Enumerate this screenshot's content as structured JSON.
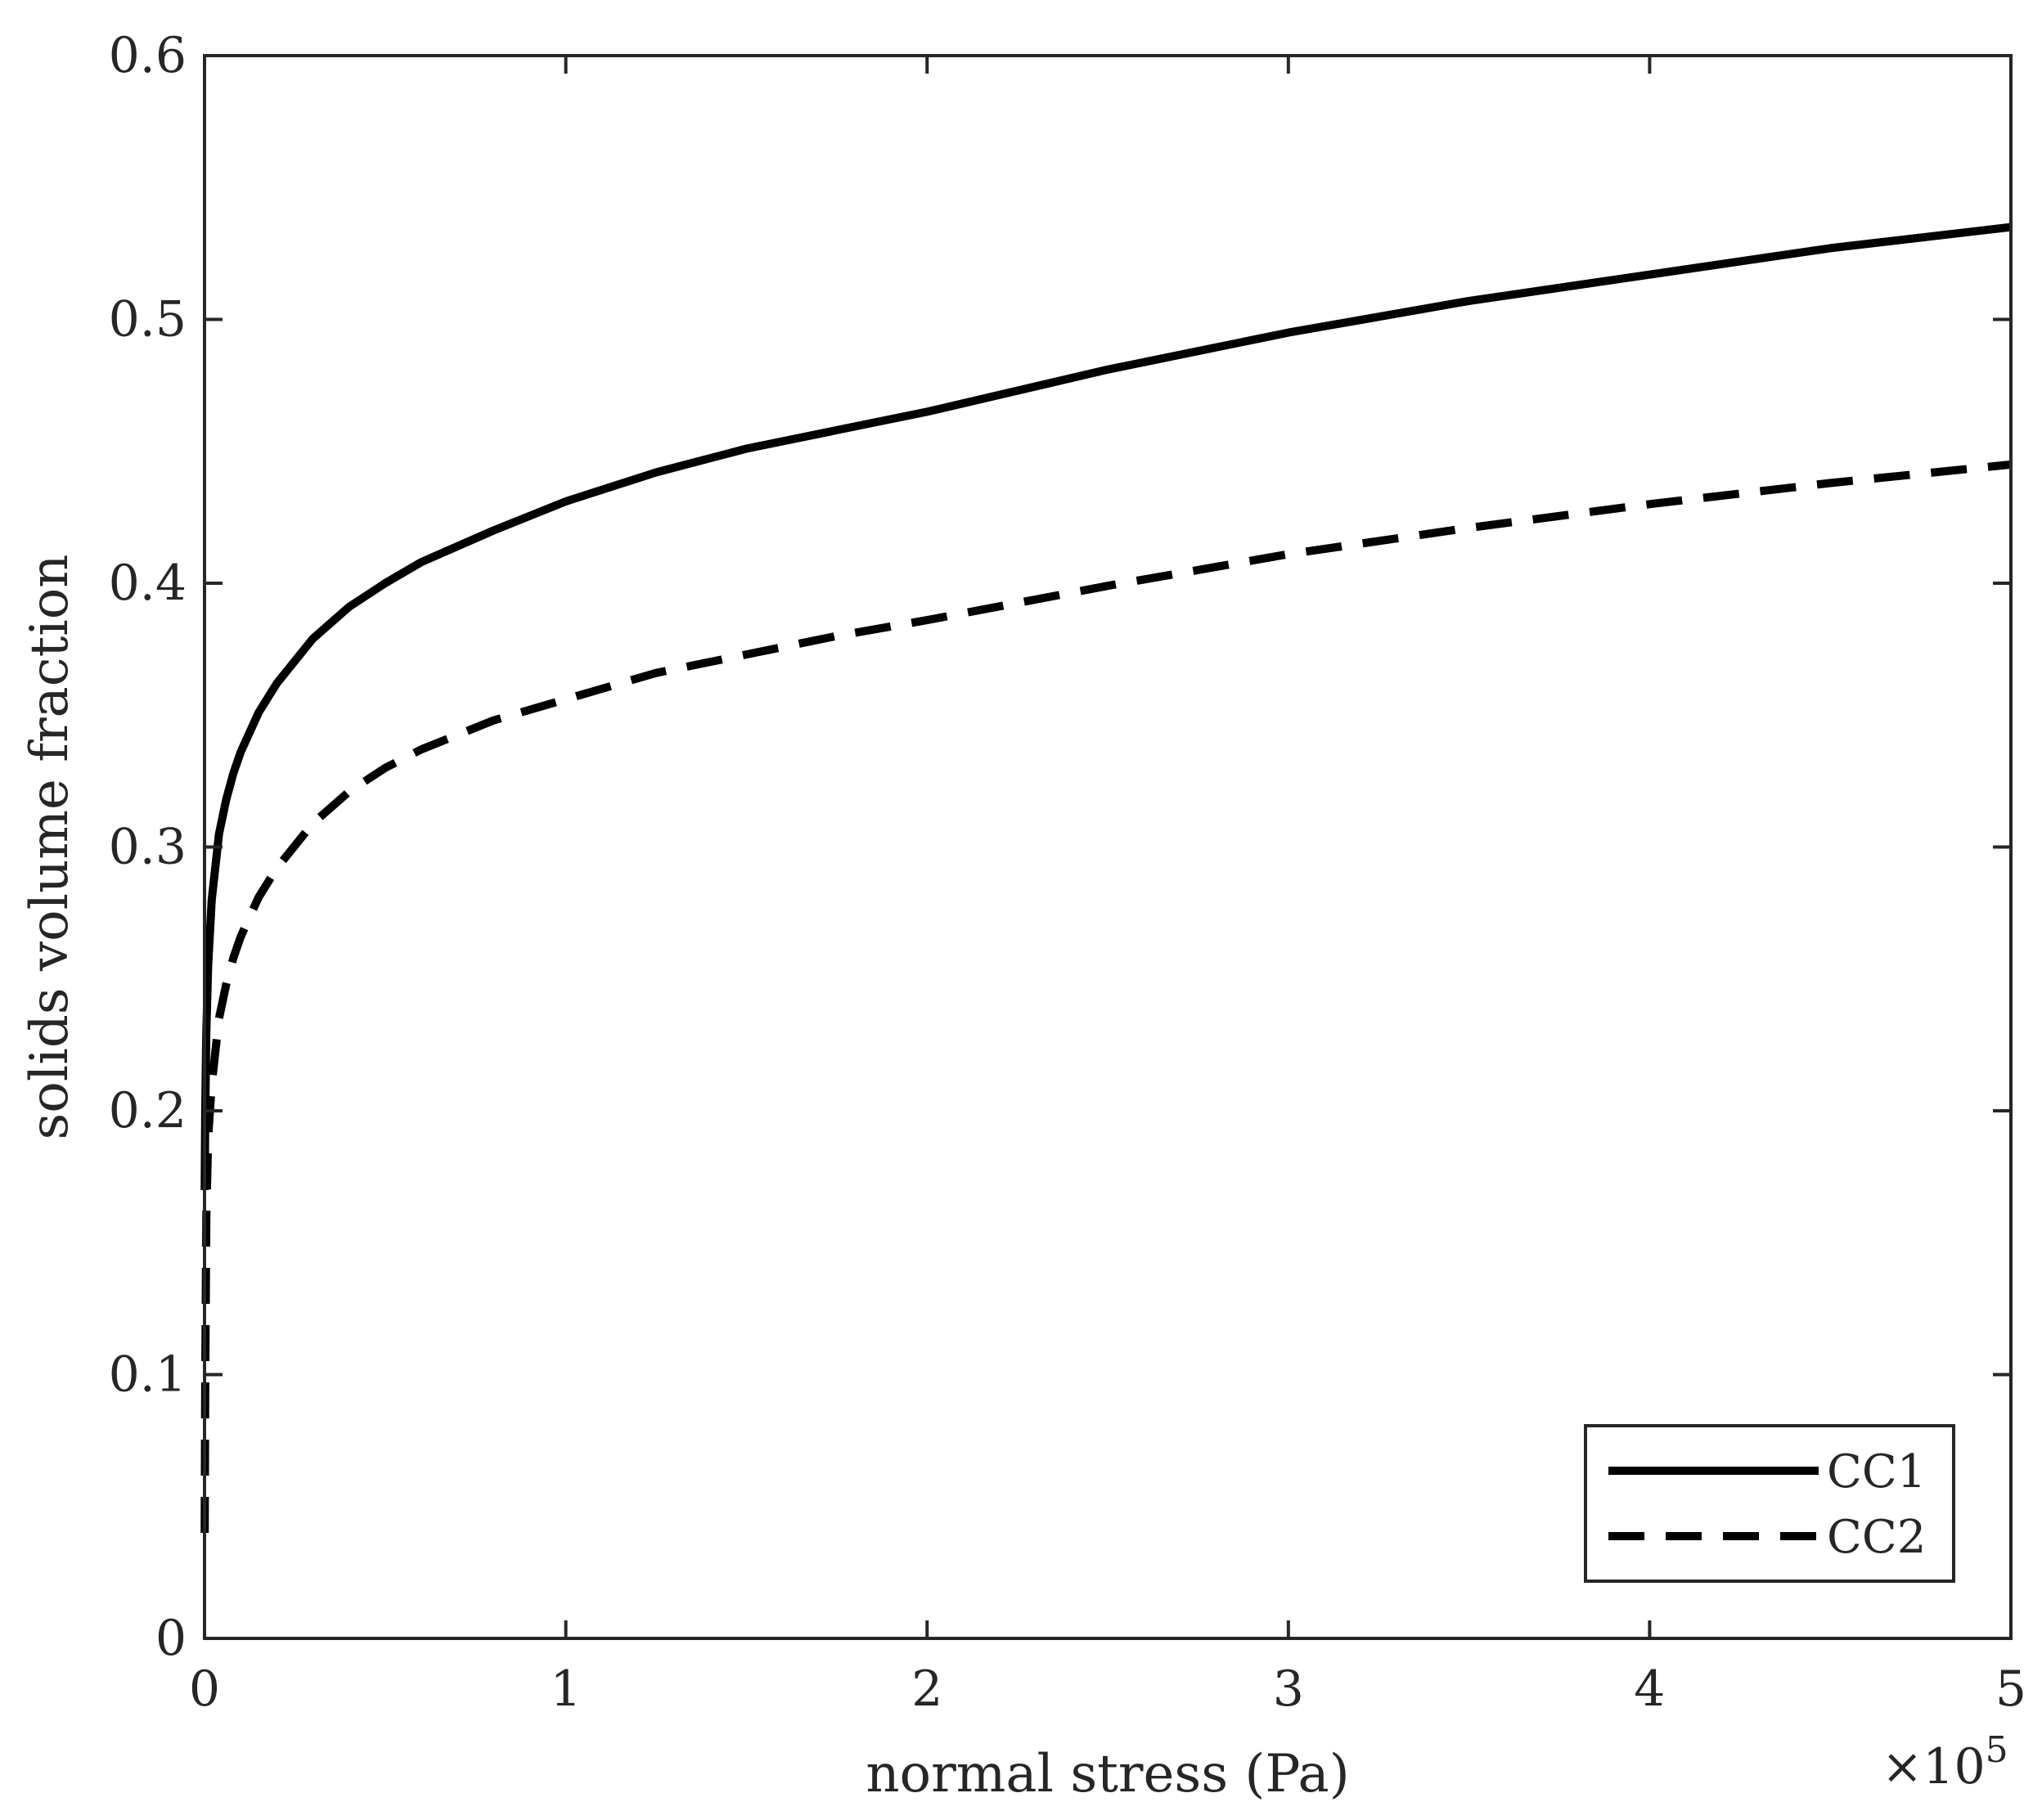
{
  "chart_data": {
    "type": "line",
    "title": "",
    "xlabel": "normal stress (Pa)",
    "ylabel": "solids volume fraction",
    "x_exponent_label": "×10",
    "x_exponent_power": "5",
    "xlim": [
      0,
      5
    ],
    "ylim": [
      0,
      0.6
    ],
    "x_scale_note": "x values in units of 1e5 Pa",
    "xticks": [
      0,
      1,
      2,
      3,
      4,
      5
    ],
    "xtick_labels": [
      "0",
      "1",
      "2",
      "3",
      "4",
      "5"
    ],
    "yticks": [
      0,
      0.1,
      0.2,
      0.3,
      0.4,
      0.5,
      0.6
    ],
    "ytick_labels": [
      "0",
      "0.1",
      "0.2",
      "0.3",
      "0.4",
      "0.5",
      "0.6"
    ],
    "grid": false,
    "legend_position": "bottom-right",
    "series": [
      {
        "name": "CC1",
        "style": "solid",
        "color": "#000000",
        "x": [
          0.0005,
          0.002,
          0.005,
          0.01,
          0.02,
          0.04,
          0.06,
          0.08,
          0.1,
          0.15,
          0.2,
          0.3,
          0.4,
          0.5,
          0.6,
          0.8,
          1.0,
          1.25,
          1.5,
          1.75,
          2.0,
          2.5,
          3.0,
          3.5,
          4.0,
          4.5,
          5.0
        ],
        "y": [
          0.17,
          0.2,
          0.23,
          0.255,
          0.28,
          0.305,
          0.318,
          0.328,
          0.336,
          0.351,
          0.362,
          0.379,
          0.391,
          0.4,
          0.408,
          0.42,
          0.431,
          0.442,
          0.451,
          0.458,
          0.465,
          0.481,
          0.495,
          0.507,
          0.517,
          0.527,
          0.535
        ]
      },
      {
        "name": "CC2",
        "style": "dashed",
        "color": "#000000",
        "x": [
          0.0005,
          0.002,
          0.005,
          0.01,
          0.02,
          0.04,
          0.06,
          0.08,
          0.1,
          0.15,
          0.2,
          0.3,
          0.4,
          0.5,
          0.6,
          0.8,
          1.0,
          1.25,
          1.5,
          1.75,
          2.0,
          2.5,
          3.0,
          3.5,
          4.0,
          4.5,
          5.0
        ],
        "y": [
          0.04,
          0.1,
          0.16,
          0.19,
          0.21,
          0.235,
          0.248,
          0.258,
          0.266,
          0.281,
          0.292,
          0.309,
          0.321,
          0.33,
          0.337,
          0.348,
          0.356,
          0.366,
          0.373,
          0.38,
          0.386,
          0.399,
          0.411,
          0.421,
          0.43,
          0.438,
          0.445
        ]
      }
    ]
  }
}
